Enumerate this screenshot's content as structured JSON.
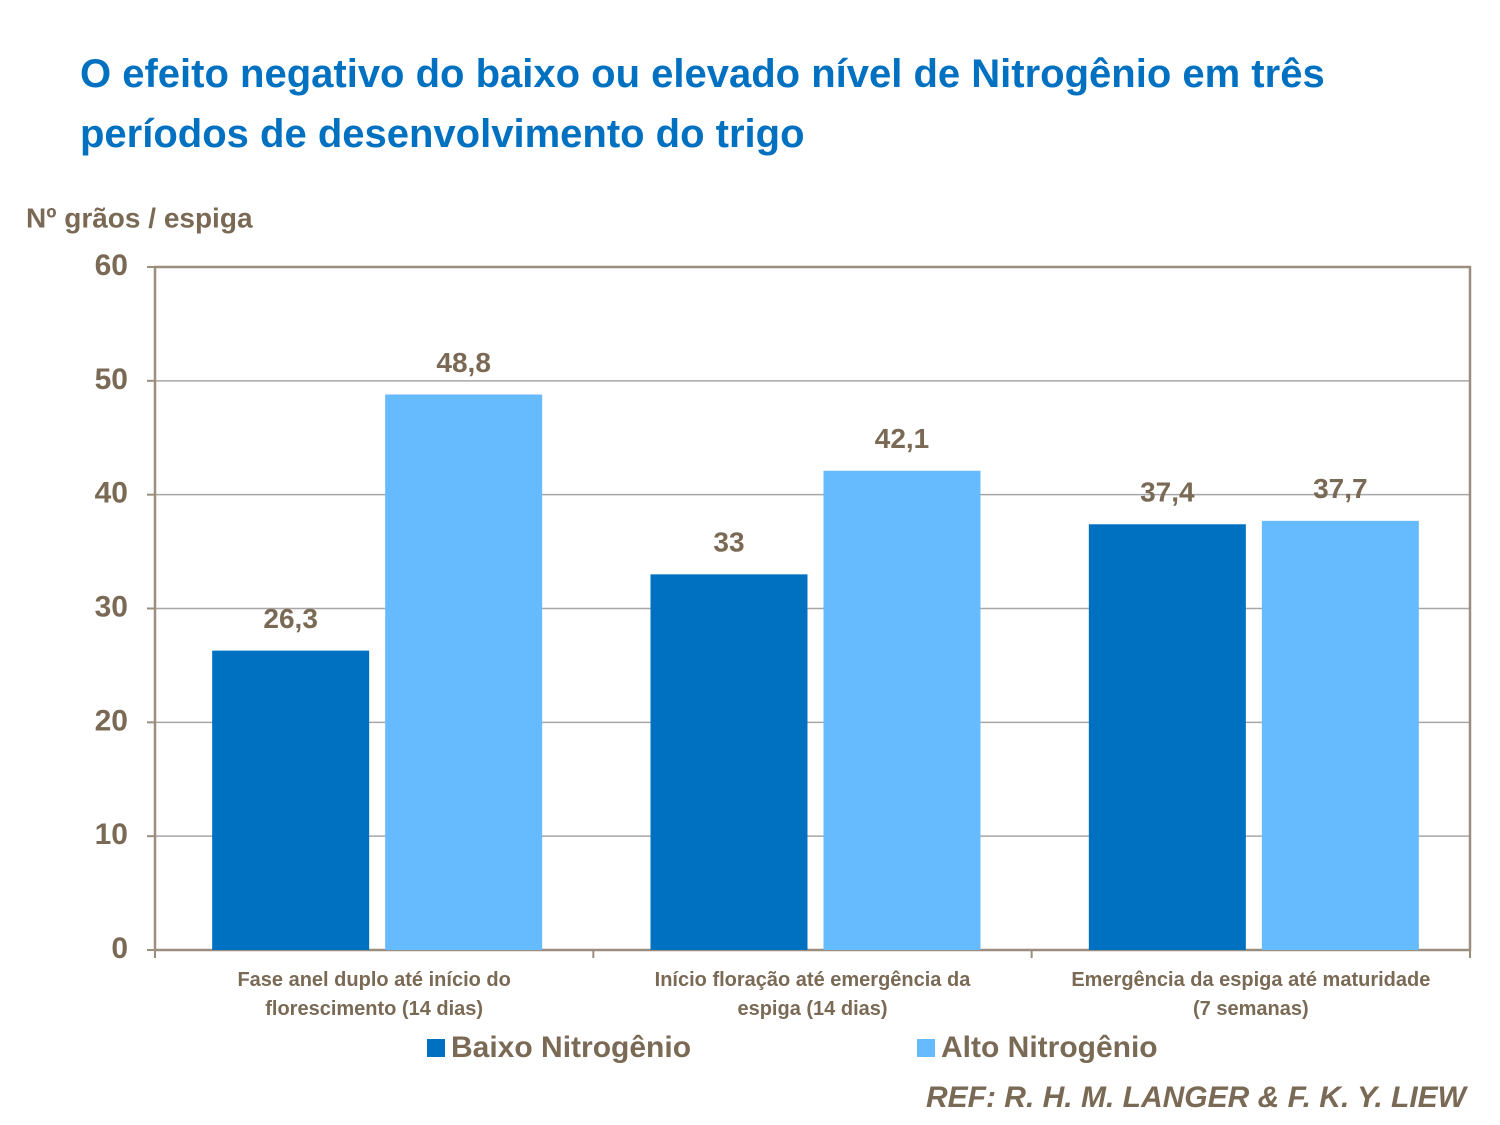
{
  "chart_data": {
    "type": "bar",
    "title": "O efeito negativo do baixo ou elevado nível de Nitrogênio em três períodos de desenvolvimento do trigo",
    "y_label": "Nº grãos / espiga",
    "categories": [
      "Fase anel duplo até início do florescimento (14 dias)",
      "Início floração até emergência da espiga (14 dias)",
      "Emergência da espiga até maturidade (7 semanas)"
    ],
    "series": [
      {
        "name": "Baixo Nitrogênio",
        "color": "#0070c0",
        "values": [
          26.3,
          33,
          37.4
        ],
        "value_labels": [
          "26,3",
          "33",
          "37,4"
        ]
      },
      {
        "name": "Alto Nitrogênio",
        "color": "#66bbff",
        "values": [
          48.8,
          42.1,
          37.7
        ],
        "value_labels": [
          "48,8",
          "42,1",
          "37,7"
        ]
      }
    ],
    "ylim": [
      0,
      60
    ],
    "yticks": [
      0,
      10,
      20,
      30,
      40,
      50,
      60
    ],
    "grid": true,
    "legend": "bottom",
    "source": "REF: R. H. M. LANGER & F. K. Y. LIEW"
  }
}
